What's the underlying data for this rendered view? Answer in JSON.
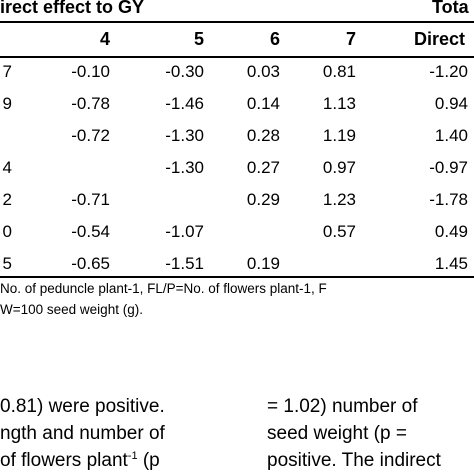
{
  "table": {
    "group_header_left": "irect effect to  GY",
    "group_header_right": "Tota",
    "columns": [
      "4",
      "5",
      "6",
      "7",
      "Direct"
    ],
    "rows": [
      {
        "stub": "7",
        "c4": "-0.10",
        "c5": "-0.30",
        "c6": "0.03",
        "c7": "0.81",
        "c8": "-1.20"
      },
      {
        "stub": "9",
        "c4": "-0.78",
        "c5": "-1.46",
        "c6": "0.14",
        "c7": "1.13",
        "c8": "0.94"
      },
      {
        "stub": "",
        "c4": "-0.72",
        "c5": "-1.30",
        "c6": "0.28",
        "c7": "1.19",
        "c8": "1.40"
      },
      {
        "stub": "4",
        "c4": "",
        "c5": "-1.30",
        "c6": "0.27",
        "c7": "0.97",
        "c8": "-0.97"
      },
      {
        "stub": "2",
        "c4": "-0.71",
        "c5": "",
        "c6": "0.29",
        "c7": "1.23",
        "c8": "-1.78"
      },
      {
        "stub": "0",
        "c4": "-0.54",
        "c5": "-1.07",
        "c6": "",
        "c7": "0.57",
        "c8": "0.49"
      },
      {
        "stub": "5",
        "c4": "-0.65",
        "c5": "-1.51",
        "c6": "0.19",
        "c7": "",
        "c8": "1.45"
      }
    ]
  },
  "footnote": {
    "line1": "No. of peduncle plant-1, FL/P=No. of flowers plant-1, F",
    "line2": "W=100 seed weight (g)."
  },
  "prose": {
    "left_line1": "0.81) were positive.",
    "left_line2": "ngth and number of",
    "left_line3_pre": " of flowers plant",
    "left_line3_sup": "-1",
    "left_line3_post": " (p",
    "right_line1": "= 1.02) number of",
    "right_line2": "seed weight (p =",
    "right_line3": "positive. The indirect"
  }
}
